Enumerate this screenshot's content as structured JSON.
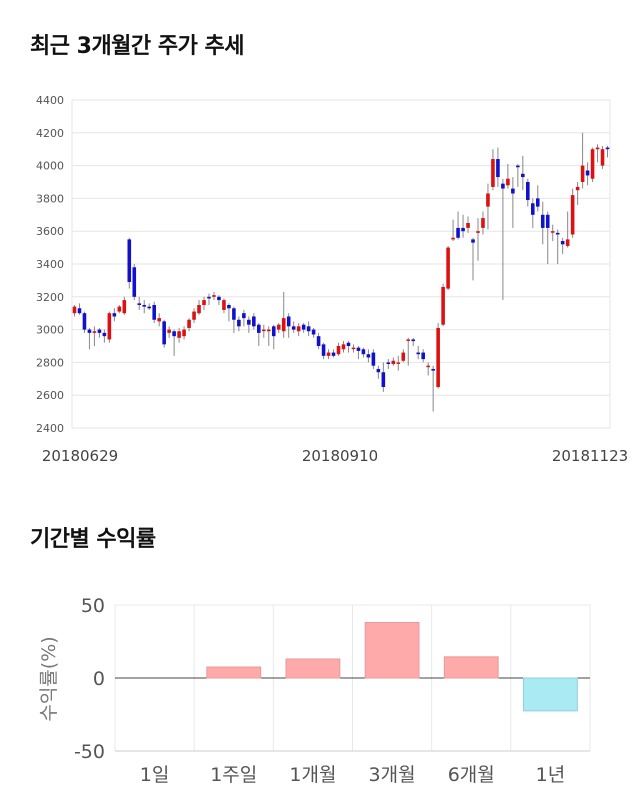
{
  "sections": {
    "price_title": "최근 3개월간 주가 추세",
    "return_title": "기간별 수익률"
  },
  "chart_data": [
    {
      "type": "candlestick",
      "title": "최근 3개월간 주가 추세",
      "ylim": [
        2400,
        4400
      ],
      "yticks": [
        2400,
        2600,
        2800,
        3000,
        3200,
        3400,
        3600,
        3800,
        4000,
        4200,
        4400
      ],
      "x_tick_labels": [
        "20180629",
        "20180910",
        "20181123"
      ],
      "grid": true,
      "colors": {
        "up": "#dd1111",
        "down": "#1111cc",
        "wick": "#888888"
      },
      "candles": [
        [
          3100,
          3140,
          3080,
          3150
        ],
        [
          3130,
          3100,
          3090,
          3160
        ],
        [
          3100,
          3000,
          2980,
          3110
        ],
        [
          3000,
          2980,
          2880,
          3010
        ],
        [
          2980,
          2990,
          2900,
          3020
        ],
        [
          3000,
          2980,
          2950,
          3010
        ],
        [
          2980,
          2960,
          2920,
          3000
        ],
        [
          2940,
          3100,
          2920,
          3110
        ],
        [
          3100,
          3080,
          3050,
          3130
        ],
        [
          3110,
          3140,
          3100,
          3150
        ],
        [
          3100,
          3180,
          3090,
          3200
        ],
        [
          3550,
          3290,
          3250,
          3560
        ],
        [
          3380,
          3200,
          3180,
          3400
        ],
        [
          3160,
          3150,
          3120,
          3200
        ],
        [
          3150,
          3140,
          3100,
          3180
        ],
        [
          3140,
          3130,
          3120,
          3160
        ],
        [
          3150,
          3060,
          3040,
          3170
        ],
        [
          3050,
          3070,
          3020,
          3100
        ],
        [
          3050,
          2910,
          2890,
          3060
        ],
        [
          2980,
          3000,
          2950,
          3020
        ],
        [
          2990,
          2960,
          2840,
          3000
        ],
        [
          2950,
          2990,
          2920,
          3010
        ],
        [
          2960,
          3000,
          2940,
          3020
        ],
        [
          3010,
          3060,
          2990,
          3070
        ],
        [
          3060,
          3110,
          3040,
          3130
        ],
        [
          3100,
          3150,
          3090,
          3180
        ],
        [
          3150,
          3180,
          3120,
          3200
        ],
        [
          3200,
          3190,
          3150,
          3220
        ],
        [
          3200,
          3210,
          3180,
          3230
        ],
        [
          3200,
          3180,
          3150,
          3210
        ],
        [
          3120,
          3180,
          3100,
          3190
        ],
        [
          3150,
          3130,
          3050,
          3160
        ],
        [
          3130,
          3060,
          2980,
          3140
        ],
        [
          3060,
          3020,
          2990,
          3080
        ],
        [
          3100,
          3070,
          3020,
          3120
        ],
        [
          3060,
          3030,
          2980,
          3080
        ],
        [
          3080,
          3020,
          3000,
          3100
        ],
        [
          3030,
          2980,
          2900,
          3040
        ],
        [
          3000,
          3000,
          2950,
          3030
        ],
        [
          2990,
          3000,
          2900,
          3020
        ],
        [
          3020,
          2960,
          2880,
          3030
        ],
        [
          3000,
          3030,
          2980,
          3040
        ],
        [
          2990,
          3070,
          2950,
          3230
        ],
        [
          3080,
          3020,
          2950,
          3100
        ],
        [
          3020,
          3000,
          2980,
          3050
        ],
        [
          2990,
          3020,
          2960,
          3040
        ],
        [
          3030,
          3000,
          2980,
          3040
        ],
        [
          3020,
          2990,
          2960,
          3050
        ],
        [
          3000,
          2970,
          2950,
          3010
        ],
        [
          2960,
          2900,
          2880,
          2980
        ],
        [
          2910,
          2840,
          2820,
          2920
        ],
        [
          2840,
          2860,
          2820,
          2880
        ],
        [
          2860,
          2840,
          2830,
          2880
        ],
        [
          2850,
          2900,
          2840,
          2920
        ],
        [
          2880,
          2910,
          2860,
          2930
        ],
        [
          2920,
          2900,
          2860,
          2930
        ],
        [
          2890,
          2890,
          2860,
          2910
        ],
        [
          2890,
          2870,
          2820,
          2900
        ],
        [
          2880,
          2850,
          2830,
          2890
        ],
        [
          2850,
          2830,
          2800,
          2880
        ],
        [
          2860,
          2780,
          2760,
          2880
        ],
        [
          2760,
          2740,
          2700,
          2780
        ],
        [
          2740,
          2650,
          2620,
          2800
        ],
        [
          2800,
          2790,
          2760,
          2820
        ],
        [
          2790,
          2810,
          2780,
          2830
        ],
        [
          2800,
          2800,
          2750,
          2840
        ],
        [
          2810,
          2860,
          2800,
          2880
        ],
        [
          2940,
          2940,
          2780,
          2950
        ],
        [
          2940,
          2930,
          2900,
          2950
        ],
        [
          2860,
          2850,
          2820,
          2900
        ],
        [
          2860,
          2820,
          2800,
          2880
        ],
        [
          2780,
          2780,
          2720,
          2800
        ],
        [
          2760,
          2750,
          2500,
          2780
        ],
        [
          2650,
          3010,
          2640,
          3040
        ],
        [
          3030,
          3260,
          3020,
          3280
        ],
        [
          3250,
          3500,
          3240,
          3510
        ],
        [
          3550,
          3560,
          3540,
          3670
        ],
        [
          3620,
          3560,
          3550,
          3720
        ],
        [
          3620,
          3600,
          3560,
          3700
        ],
        [
          3620,
          3650,
          3590,
          3690
        ],
        [
          3550,
          3530,
          3300,
          3560
        ],
        [
          3590,
          3600,
          3420,
          3680
        ],
        [
          3620,
          3680,
          3580,
          3720
        ],
        [
          3750,
          3830,
          3610,
          3890
        ],
        [
          3870,
          4040,
          3850,
          4100
        ],
        [
          4040,
          3930,
          3870,
          4110
        ],
        [
          3890,
          3860,
          3180,
          3920
        ],
        [
          3880,
          3920,
          3860,
          4010
        ],
        [
          3860,
          3830,
          3620,
          3930
        ],
        [
          4000,
          3990,
          3870,
          4010
        ],
        [
          3950,
          3930,
          3850,
          4060
        ],
        [
          3900,
          3790,
          3750,
          3920
        ],
        [
          3770,
          3700,
          3620,
          3800
        ],
        [
          3800,
          3750,
          3720,
          3880
        ],
        [
          3700,
          3620,
          3520,
          3780
        ],
        [
          3700,
          3620,
          3400,
          3720
        ],
        [
          3600,
          3600,
          3540,
          3640
        ],
        [
          3590,
          3580,
          3400,
          3610
        ],
        [
          3540,
          3520,
          3460,
          3560
        ],
        [
          3510,
          3550,
          3500,
          3720
        ],
        [
          3580,
          3820,
          3560,
          3860
        ],
        [
          3850,
          3870,
          3760,
          3900
        ],
        [
          3900,
          4000,
          3860,
          4200
        ],
        [
          3970,
          3940,
          3880,
          4020
        ],
        [
          3920,
          4100,
          3900,
          4110
        ],
        [
          4100,
          4110,
          4020,
          4130
        ],
        [
          4000,
          4100,
          3980,
          4120
        ],
        [
          4110,
          4100,
          4050,
          4120
        ]
      ]
    },
    {
      "type": "bar",
      "title": "기간별 수익률",
      "categories": [
        "1일",
        "1주일",
        "1개월",
        "3개월",
        "6개월",
        "1년"
      ],
      "values": [
        0,
        7.5,
        13,
        38,
        14.5,
        -22.5
      ],
      "ylabel": "수익률(%)",
      "ylim": [
        -50,
        50
      ],
      "yticks": [
        50,
        0,
        -50
      ],
      "grid": true,
      "colors": {
        "positive": "#ffaaaa",
        "negative": "#aaeaf3"
      }
    }
  ]
}
